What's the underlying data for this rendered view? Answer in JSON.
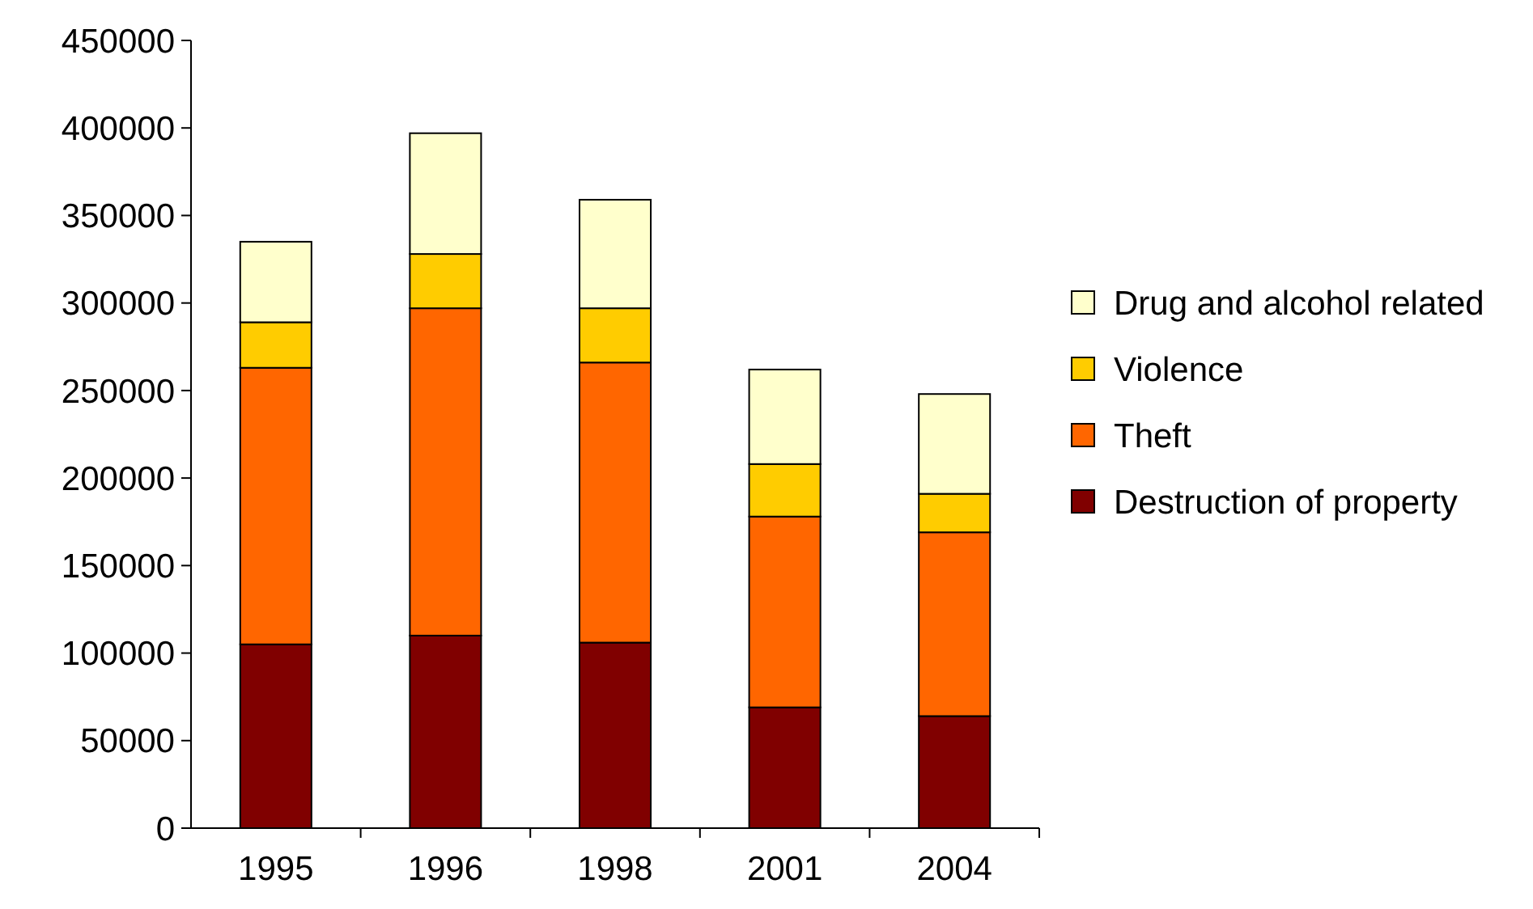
{
  "chart_data": {
    "type": "bar",
    "stacked": true,
    "categories": [
      "1995",
      "1996",
      "1998",
      "2001",
      "2004"
    ],
    "series": [
      {
        "name": "Destruction of property",
        "color": "#800000",
        "values": [
          105000,
          110000,
          106000,
          69000,
          64000
        ]
      },
      {
        "name": "Theft",
        "color": "#ff6600",
        "values": [
          158000,
          187000,
          160000,
          109000,
          105000
        ]
      },
      {
        "name": "Violence",
        "color": "#ffcc00",
        "values": [
          26000,
          31000,
          31000,
          30000,
          22000
        ]
      },
      {
        "name": "Drug and alcohol related",
        "color": "#ffffcc",
        "values": [
          46000,
          69000,
          62000,
          54000,
          57000
        ]
      }
    ],
    "ylim": [
      0,
      450000
    ],
    "yticks": [
      0,
      50000,
      100000,
      150000,
      200000,
      250000,
      300000,
      350000,
      400000,
      450000
    ],
    "grid": false,
    "legend": "right"
  }
}
